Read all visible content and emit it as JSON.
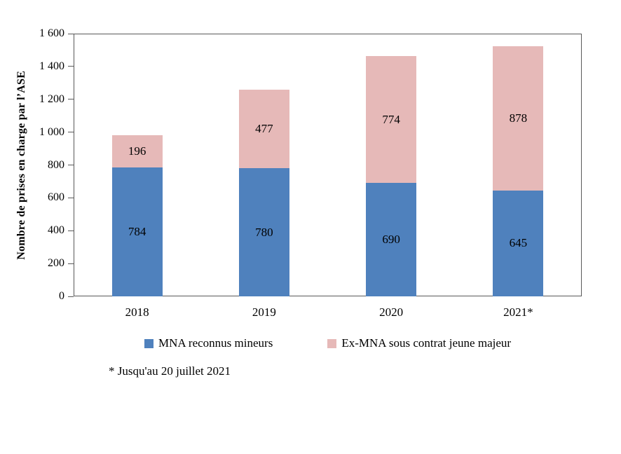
{
  "chart_data": {
    "type": "bar",
    "stacked": true,
    "categories": [
      "2018",
      "2019",
      "2020",
      "2021*"
    ],
    "series": [
      {
        "name": "MNA reconnus mineurs",
        "color": "#4f81bd",
        "values": [
          784,
          780,
          690,
          645
        ]
      },
      {
        "name": "Ex-MNA sous contrat jeune majeur",
        "color": "#e6b9b8",
        "values": [
          196,
          477,
          774,
          878
        ]
      }
    ],
    "title": "",
    "xlabel": "",
    "ylabel": "Nombre de prises en charge par l’ASE",
    "ylim": [
      0,
      1600
    ],
    "ytick_step": 200,
    "ytick_labels": [
      "0",
      "200",
      "400",
      "600",
      "800",
      "1 000",
      "1 200",
      "1 400",
      "1 600"
    ],
    "grid": false,
    "legend_position": "bottom"
  },
  "footnote": "* Jusqu'au 20 juillet 2021"
}
